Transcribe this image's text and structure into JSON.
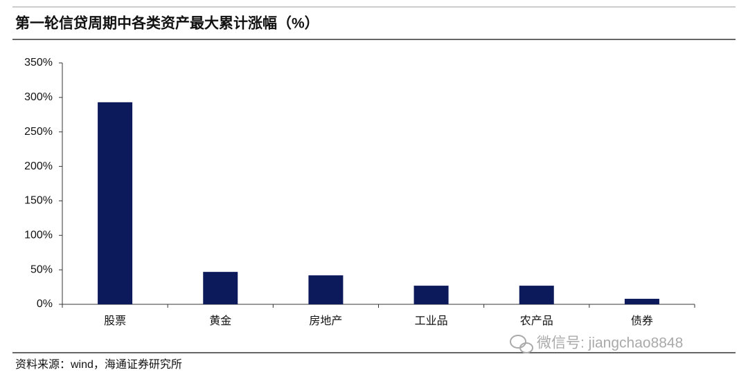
{
  "chart_data": {
    "type": "bar",
    "title": "第一轮信贷周期中各类资产最大累计涨幅（%）",
    "categories": [
      "股票",
      "黄金",
      "房地产",
      "工业品",
      "农产品",
      "债券"
    ],
    "values": [
      293,
      47,
      42,
      27,
      27,
      8
    ],
    "color": "#0c1a5c",
    "ylim": [
      0,
      350
    ],
    "yticks": [
      {
        "value": 0,
        "label": "0%"
      },
      {
        "value": 50,
        "label": "50%"
      },
      {
        "value": 100,
        "label": "100%"
      },
      {
        "value": 150,
        "label": "150%"
      },
      {
        "value": 200,
        "label": "200%"
      },
      {
        "value": 250,
        "label": "250%"
      },
      {
        "value": 300,
        "label": "300%"
      },
      {
        "value": 350,
        "label": "350%"
      }
    ],
    "grid": false,
    "source": "资料来源：wind，海通证券研究所",
    "watermark": "微信号: jiangchao8848"
  }
}
